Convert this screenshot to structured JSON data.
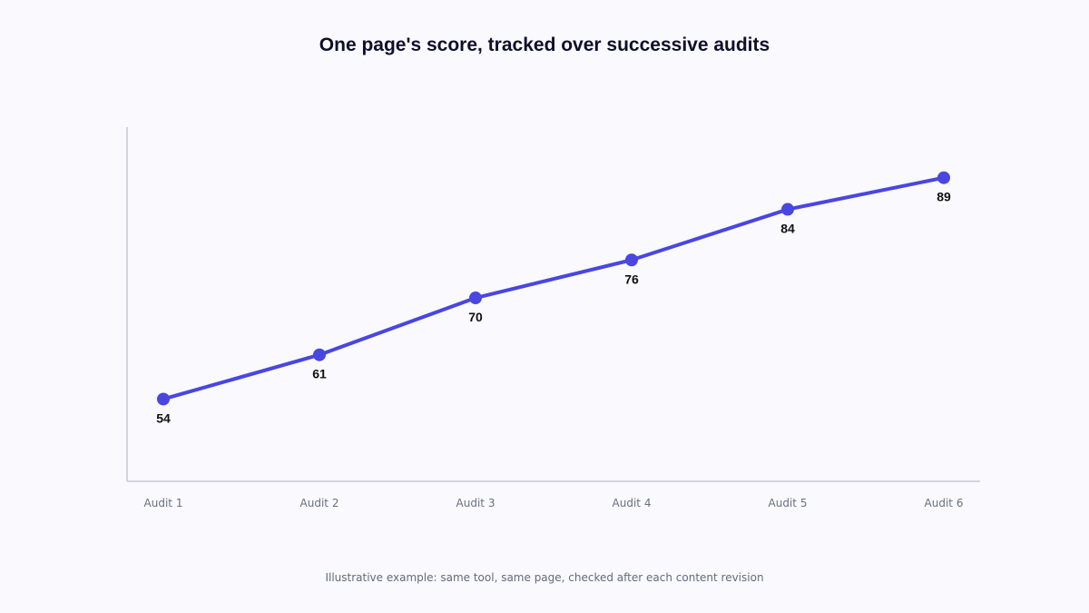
{
  "chart_data": {
    "type": "line",
    "title": "One page's score, tracked over successive audits",
    "categories": [
      "Audit 1",
      "Audit 2",
      "Audit 3",
      "Audit 4",
      "Audit 5",
      "Audit 6"
    ],
    "series": [
      {
        "values": [
          54,
          61,
          70,
          76,
          84,
          89
        ]
      }
    ],
    "ylim": [
      41,
      97
    ],
    "grid": false,
    "legend": "none",
    "data_labels": true,
    "colors": {
      "line": "#4a46e0",
      "point": "#4a46e0",
      "axis": "#c8c8d4"
    }
  },
  "footnote": "Illustrative example: same tool, same page, checked after each content revision"
}
